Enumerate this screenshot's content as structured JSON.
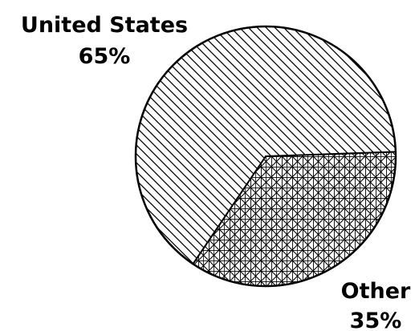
{
  "chart_data": {
    "type": "pie",
    "title": "",
    "slices": [
      {
        "label": "United States",
        "value": 65,
        "value_label": "65%",
        "pattern": "diagonal-hatch"
      },
      {
        "label": "Other",
        "value": 35,
        "value_label": "35%",
        "pattern": "crosshatch"
      }
    ],
    "legend": "none",
    "colors": {
      "ink": "#000000",
      "background": "#ffffff"
    }
  }
}
